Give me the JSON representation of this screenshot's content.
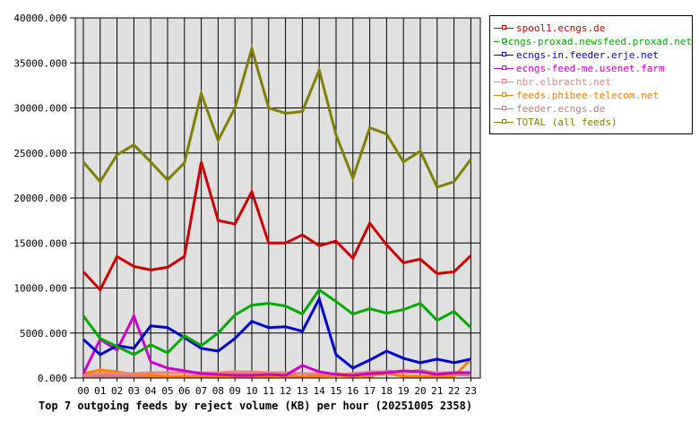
{
  "chart_data": {
    "type": "line",
    "title": "Top 7 outgoing feeds by reject volume (KB) per hour (20251005 2358)",
    "xlabel": "",
    "ylabel": "",
    "ylim": [
      0,
      40000
    ],
    "grid": true,
    "legend_position": "right",
    "y_ticks": [
      "0.000",
      "5000.000",
      "10000.000",
      "15000.000",
      "20000.000",
      "25000.000",
      "30000.000",
      "35000.000",
      "40000.000"
    ],
    "categories": [
      "00",
      "01",
      "02",
      "03",
      "04",
      "05",
      "06",
      "07",
      "08",
      "09",
      "10",
      "11",
      "12",
      "13",
      "14",
      "15",
      "16",
      "17",
      "18",
      "19",
      "20",
      "21",
      "22",
      "23"
    ],
    "series": [
      {
        "name": "spool1.ecngs.de",
        "color": "#cc0000",
        "values": [
          11800,
          9800,
          13500,
          12400,
          12000,
          12300,
          13500,
          24000,
          17500,
          17100,
          20700,
          15000,
          15000,
          15900,
          14700,
          15200,
          13300,
          17200,
          14800,
          12800,
          13200,
          11600,
          11800,
          13600
        ]
      },
      {
        "name": "ecngs-proxad.newsfeed.proxad.net",
        "color": "#00aa00",
        "values": [
          6900,
          4400,
          3500,
          2600,
          3700,
          2800,
          4700,
          3600,
          5000,
          7000,
          8100,
          8300,
          8000,
          7100,
          9800,
          8500,
          7100,
          7700,
          7200,
          7600,
          8300,
          6400,
          7400,
          5600
        ]
      },
      {
        "name": "ecngs-in.feeder.erje.net",
        "color": "#0000cc",
        "values": [
          4300,
          2600,
          3600,
          3300,
          5800,
          5600,
          4500,
          3300,
          3000,
          4400,
          6300,
          5600,
          5700,
          5200,
          8800,
          2600,
          1100,
          2000,
          3000,
          2200,
          1700,
          2100,
          1700,
          2100
        ]
      },
      {
        "name": "ecngs-feed-me.usenet.farm",
        "color": "#cc00cc",
        "values": [
          500,
          4300,
          3100,
          6900,
          1800,
          1100,
          800,
          500,
          400,
          300,
          300,
          400,
          300,
          1400,
          700,
          400,
          300,
          500,
          600,
          800,
          700,
          400,
          600,
          600
        ]
      },
      {
        "name": "nbr.elbracht.net",
        "color": "#f08080",
        "values": [
          300,
          500,
          500,
          500,
          600,
          600,
          600,
          600,
          600,
          700,
          700,
          600,
          600,
          500,
          500,
          400,
          500,
          700,
          700,
          600,
          700,
          600,
          600,
          600
        ]
      },
      {
        "name": "feeds.phibee-telecom.net",
        "color": "#ff8000",
        "values": [
          500,
          900,
          700,
          400,
          300,
          200,
          200,
          100,
          100,
          100,
          100,
          100,
          100,
          100,
          200,
          300,
          200,
          300,
          500,
          200,
          200,
          200,
          200,
          2100
        ]
      },
      {
        "name": "feeder.ecngs.de",
        "color": "#c08080",
        "values": [
          100,
          200,
          200,
          200,
          200,
          200,
          200,
          300,
          400,
          500,
          500,
          600,
          400,
          100,
          400,
          500,
          400,
          100,
          800,
          600,
          900,
          500,
          400,
          300
        ]
      },
      {
        "name": "TOTAL (all feeds)",
        "color": "#808000",
        "values": [
          24000,
          21800,
          24800,
          25900,
          24000,
          22000,
          23900,
          31600,
          26400,
          30000,
          36600,
          30000,
          29400,
          29600,
          34200,
          27000,
          22200,
          27800,
          27100,
          24000,
          25200,
          21200,
          21800,
          24300
        ]
      }
    ]
  },
  "legend": {
    "items": [
      {
        "label": "spool1.ecngs.de",
        "color": "#cc0000"
      },
      {
        "label": "ecngs-proxad.newsfeed.proxad.net",
        "color": "#00aa00"
      },
      {
        "label": "ecngs-in.feeder.erje.net",
        "color": "#0000cc"
      },
      {
        "label": "ecngs-feed-me.usenet.farm",
        "color": "#cc00cc"
      },
      {
        "label": "nbr.elbracht.net",
        "color": "#f08080"
      },
      {
        "label": "feeds.phibee-telecom.net",
        "color": "#ff8000"
      },
      {
        "label": "feeder.ecngs.de",
        "color": "#c08080"
      },
      {
        "label": "TOTAL (all feeds)",
        "color": "#808000"
      }
    ]
  },
  "colors": {
    "plot_background": "#e0e0e0",
    "grid": "#000000"
  }
}
